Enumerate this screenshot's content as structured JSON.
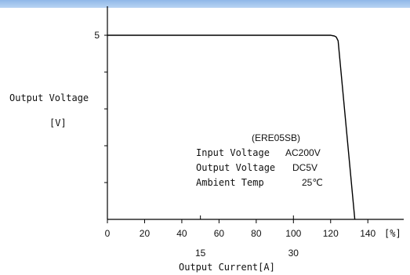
{
  "chart_data": {
    "type": "line",
    "ylabel": "Output Voltage",
    "ylabel_unit": "[V]",
    "xlabel": "Output Current[A]",
    "x_unit": "[%]",
    "x_ticks": [
      "0",
      "20",
      "40",
      "60",
      "80",
      "100",
      "120",
      "140"
    ],
    "x_secondary_ticks": [
      {
        "label": "15",
        "at_percent": 50
      },
      {
        "label": "30",
        "at_percent": 100
      }
    ],
    "y_ticks": [
      {
        "label": "5",
        "value": 5
      }
    ],
    "xlim": [
      0,
      150
    ],
    "ylim": [
      0,
      6
    ],
    "series": [
      {
        "x": [
          0,
          100,
          118,
          120,
          121,
          122,
          123,
          124,
          133
        ],
        "y": [
          5,
          5,
          5,
          5,
          4.99,
          4.98,
          4.95,
          4.85,
          0
        ]
      }
    ],
    "annotation": {
      "model": "(ERE05SB)",
      "lines": [
        {
          "name": "Input Voltage",
          "value": "AC200V"
        },
        {
          "name": "Output Voltage",
          "value": "DC5V"
        },
        {
          "name": "Ambient Temp",
          "value": "25℃"
        }
      ]
    },
    "colors": {
      "line": "#000000",
      "header": "#a9c9ef"
    }
  }
}
